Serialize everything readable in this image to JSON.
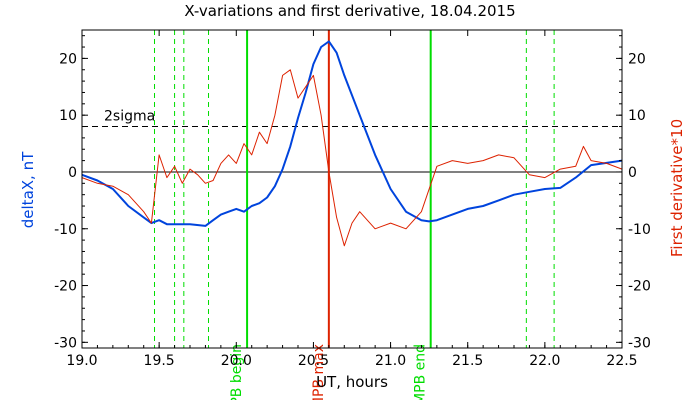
{
  "chart_data": {
    "type": "line",
    "title": "X-variations and first derivative, 18.04.2015",
    "xlabel": "UT, hours",
    "ylabel_left": "deltaX, nT",
    "ylabel_right": "First derivative*10",
    "xlim": [
      19.0,
      22.5
    ],
    "ylim": [
      -31,
      25
    ],
    "x_ticks": [
      "19.0",
      "19.5",
      "20.0",
      "20.5",
      "21.0",
      "21.5",
      "22.0",
      "22.5"
    ],
    "y_ticks_left": [
      "-30",
      "-20",
      "-10",
      "0",
      "10",
      "20"
    ],
    "y_ticks_right": [
      "-30",
      "-20",
      "-10",
      "0",
      "10",
      "20"
    ],
    "threshold": {
      "label": "2sigma",
      "value": 8
    },
    "zero_line": 0,
    "markers": [
      {
        "x": 20.07,
        "label": "MPB begin",
        "color": "#00dd00"
      },
      {
        "x": 20.6,
        "label": "MPB max",
        "color": "#dd2200"
      },
      {
        "x": 21.26,
        "label": "MPB end",
        "color": "#00dd00"
      }
    ],
    "dashed_markers": [
      19.47,
      19.6,
      19.66,
      19.82,
      21.88,
      22.06
    ],
    "series": [
      {
        "key": "deltaX",
        "color": "#0044dd",
        "x": [
          19.0,
          19.1,
          19.2,
          19.3,
          19.4,
          19.45,
          19.5,
          19.55,
          19.6,
          19.7,
          19.8,
          19.85,
          19.9,
          19.95,
          20.0,
          20.05,
          20.1,
          20.15,
          20.2,
          20.25,
          20.3,
          20.35,
          20.4,
          20.45,
          20.5,
          20.55,
          20.6,
          20.65,
          20.7,
          20.8,
          20.9,
          21.0,
          21.1,
          21.2,
          21.25,
          21.3,
          21.4,
          21.5,
          21.6,
          21.7,
          21.8,
          21.9,
          22.0,
          22.1,
          22.2,
          22.3,
          22.4,
          22.5
        ],
        "values": [
          -0.5,
          -1.5,
          -3.0,
          -6.0,
          -8.0,
          -9.0,
          -8.5,
          -9.2,
          -9.2,
          -9.2,
          -9.5,
          -8.5,
          -7.5,
          -7.0,
          -6.5,
          -7.0,
          -6.0,
          -5.5,
          -4.5,
          -2.5,
          0.5,
          4.5,
          9.5,
          14.0,
          19.0,
          22.0,
          23.0,
          21.0,
          17.0,
          10.0,
          3.0,
          -3.0,
          -7.0,
          -8.5,
          -8.7,
          -8.5,
          -7.5,
          -6.5,
          -6.0,
          -5.0,
          -4.0,
          -3.5,
          -3.0,
          -2.8,
          -1.0,
          1.2,
          1.6,
          2.0
        ]
      },
      {
        "key": "derivative",
        "color": "#dd2200",
        "x": [
          19.0,
          19.1,
          19.2,
          19.3,
          19.35,
          19.4,
          19.45,
          19.5,
          19.55,
          19.6,
          19.65,
          19.7,
          19.75,
          19.8,
          19.85,
          19.9,
          19.95,
          20.0,
          20.05,
          20.1,
          20.15,
          20.2,
          20.25,
          20.3,
          20.35,
          20.4,
          20.45,
          20.5,
          20.55,
          20.6,
          20.65,
          20.7,
          20.75,
          20.8,
          20.9,
          21.0,
          21.1,
          21.2,
          21.3,
          21.4,
          21.5,
          21.6,
          21.7,
          21.8,
          21.9,
          22.0,
          22.1,
          22.2,
          22.25,
          22.3,
          22.4,
          22.5
        ],
        "values": [
          -1.0,
          -2.0,
          -2.5,
          -4.0,
          -5.5,
          -7.0,
          -9.0,
          3.0,
          -1.0,
          1.0,
          -2.0,
          0.5,
          -0.5,
          -2.0,
          -1.5,
          1.5,
          3.0,
          1.5,
          5.0,
          3.0,
          7.0,
          5.0,
          10.0,
          17.0,
          18.0,
          13.0,
          15.0,
          17.0,
          10.0,
          0.0,
          -8.0,
          -13.0,
          -9.0,
          -7.0,
          -10.0,
          -9.0,
          -10.0,
          -7.0,
          1.0,
          2.0,
          1.5,
          2.0,
          3.0,
          2.5,
          -0.5,
          -1.0,
          0.5,
          1.0,
          4.5,
          2.0,
          1.5,
          0.5
        ]
      }
    ]
  }
}
